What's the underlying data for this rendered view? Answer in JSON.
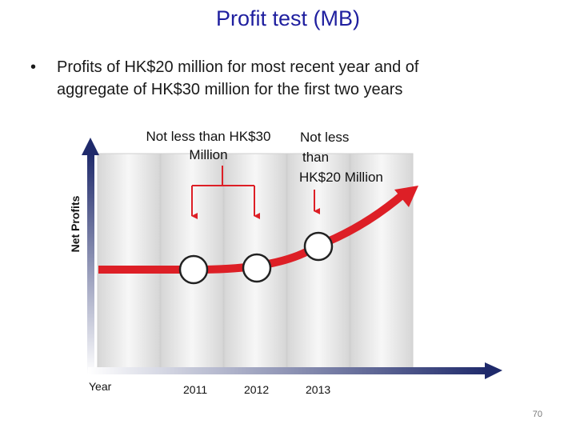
{
  "slide": {
    "title": "Profit test (MB)",
    "bullet_marker": "•",
    "bullet_lines": [
      "Profits of HK$20 million for most recent year and of",
      "aggregate of HK$30 million for the first two years"
    ],
    "page_number": "70"
  },
  "diagram": {
    "y_axis_label": "Net Profits",
    "x_axis_label": "Year",
    "years": [
      "2011",
      "2012",
      "2013"
    ],
    "annotation_two_year": [
      "Not less than HK$30",
      "Million"
    ],
    "annotation_recent_year": [
      "Not less",
      "than",
      "HK$20 Million"
    ],
    "colors": {
      "curve": "#dd1f26",
      "axis": "#1f2a6b",
      "marker_fill": "#ffffff",
      "marker_stroke": "#222222",
      "title": "#1f1f9f"
    }
  }
}
